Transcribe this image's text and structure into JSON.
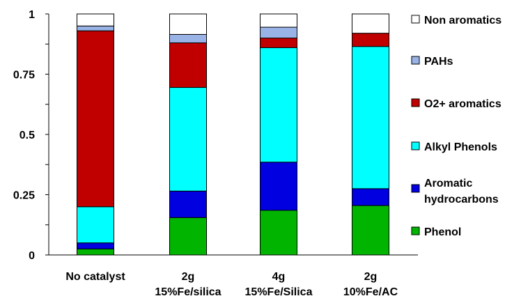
{
  "chart_data": {
    "type": "bar",
    "stacked": true,
    "categories": [
      [
        "No catalyst"
      ],
      [
        "2g",
        "15%Fe/silica"
      ],
      [
        "4g",
        "15%Fe/Silica"
      ],
      [
        "2g",
        "10%Fe/AC"
      ]
    ],
    "series": [
      {
        "name": "Phenol",
        "color": "#00b400",
        "values": [
          0.025,
          0.155,
          0.185,
          0.205
        ]
      },
      {
        "name": "Aromatic hydrocarbons",
        "color": "#0000e0",
        "values": [
          0.025,
          0.11,
          0.2,
          0.07
        ]
      },
      {
        "name": "Alkyl Phenols",
        "color": "#00ffff",
        "values": [
          0.15,
          0.43,
          0.475,
          0.59
        ]
      },
      {
        "name": "O2+ aromatics",
        "color": "#c00000",
        "values": [
          0.73,
          0.185,
          0.04,
          0.055
        ]
      },
      {
        "name": "PAHs",
        "color": "#99b3e6",
        "values": [
          0.02,
          0.035,
          0.045,
          0.0
        ]
      },
      {
        "name": "Non aromatics",
        "color": "#ffffff",
        "values": [
          0.05,
          0.085,
          0.055,
          0.08
        ]
      }
    ],
    "legend_labels": [
      [
        "Non aromatics"
      ],
      [
        "PAHs"
      ],
      [
        "O2+ aromatics"
      ],
      [
        "Alkyl Phenols"
      ],
      [
        "Aromatic",
        "hydrocarbons"
      ],
      [
        "Phenol"
      ]
    ],
    "yticks": [
      "0",
      "0.25",
      "0.5",
      "0.75",
      "1"
    ],
    "ylim": [
      0,
      1
    ],
    "legend_position": "right",
    "grid": false
  }
}
